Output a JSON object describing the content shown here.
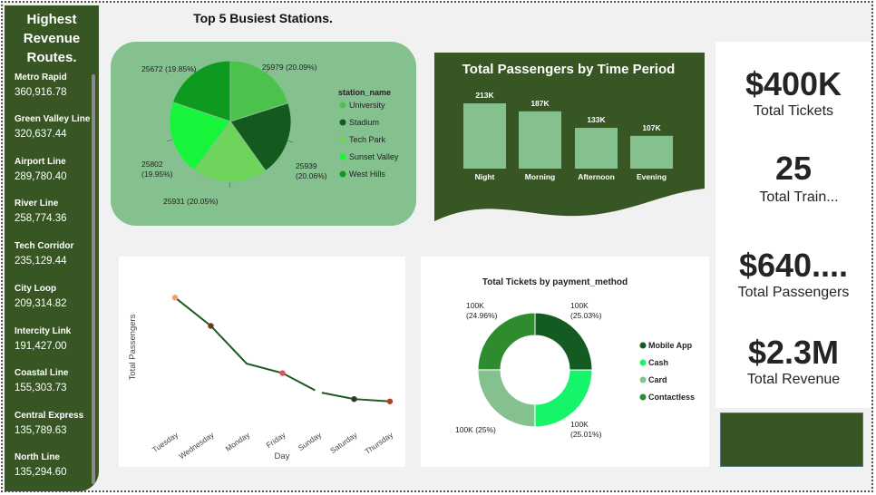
{
  "sidebar": {
    "title_lines": [
      "Highest",
      "Revenue",
      "Routes."
    ],
    "routes": [
      {
        "name": "Metro Rapid",
        "value": "360,916.78"
      },
      {
        "name": "Green Valley Line",
        "value": "320,637.44"
      },
      {
        "name": "Airport Line",
        "value": "289,780.40"
      },
      {
        "name": "River Line",
        "value": "258,774.36"
      },
      {
        "name": "Tech Corridor",
        "value": "235,129.44"
      },
      {
        "name": "City Loop",
        "value": "209,314.82"
      },
      {
        "name": "Intercity Link",
        "value": "191,427.00"
      },
      {
        "name": "Coastal Line",
        "value": "155,303.73"
      },
      {
        "name": "Central Express",
        "value": "135,789.63"
      },
      {
        "name": "North Line",
        "value": "135,294.60"
      }
    ]
  },
  "kpis": [
    {
      "value": "$400K",
      "label": "Total Tickets"
    },
    {
      "value": "25",
      "label": "Total Train..."
    },
    {
      "value": "$640....",
      "label": "Total Passengers"
    },
    {
      "value": "$2.3M",
      "label": "Total Revenue"
    }
  ],
  "colors": {
    "dark_green": "#375623",
    "panel_green": "#84c18f",
    "bar_green": "#84c18f",
    "line_green": "#1e5a1e"
  },
  "chart_data": [
    {
      "type": "pie",
      "title": "Top 5 Busiest Stations.",
      "legend_title": "station_name",
      "legend_placement": "right",
      "categories": [
        "University",
        "Stadium",
        "Tech Park",
        "Sunset Valley",
        "West Hills"
      ],
      "values": [
        25979,
        25939,
        25931,
        25802,
        25672
      ],
      "data_labels": [
        "25979 (20.09%)",
        "25939 (20.06%)",
        "25931 (20.05%)",
        "25802 (19.95%)",
        "25672 (19.85%)"
      ],
      "colors": [
        "#4cc24c",
        "#145a1e",
        "#6ed45c",
        "#16f53a",
        "#0e9a1e"
      ]
    },
    {
      "type": "bar",
      "title": "Total Passengers by Time Period",
      "categories": [
        "Night",
        "Morning",
        "Afternoon",
        "Evening"
      ],
      "values": [
        213000,
        187000,
        133000,
        107000
      ],
      "data_labels": [
        "213K",
        "187K",
        "133K",
        "107K"
      ],
      "ylim": [
        0,
        213000
      ]
    },
    {
      "type": "line",
      "title": "",
      "xlabel": "Day",
      "ylabel": "Total Passengers",
      "categories": [
        "Tuesday",
        "Wednesday",
        "Monday",
        "Friday",
        "Sunday",
        "Saturday",
        "Thursday"
      ],
      "values": [
        93000,
        92400,
        91600,
        91400,
        91000,
        90850,
        90800
      ],
      "marker_colors": [
        "#f0a070",
        "#6b3a1e",
        null,
        "#e05060",
        "#ffffff",
        "#333333",
        "#b04020"
      ]
    },
    {
      "type": "pie",
      "subtype": "donut",
      "title": "Total Tickets by payment_method",
      "legend_placement": "right",
      "categories": [
        "Mobile App",
        "Cash",
        "Card",
        "Contactless"
      ],
      "values": [
        25.03,
        25.01,
        25.0,
        24.96
      ],
      "data_labels": [
        "100K\n(25.03%)",
        "100K\n(25.01%)",
        "100K (25%)",
        "100K\n(24.96%)"
      ],
      "colors": [
        "#145a23",
        "#16f56a",
        "#84c18f",
        "#2e8b2e"
      ]
    }
  ]
}
